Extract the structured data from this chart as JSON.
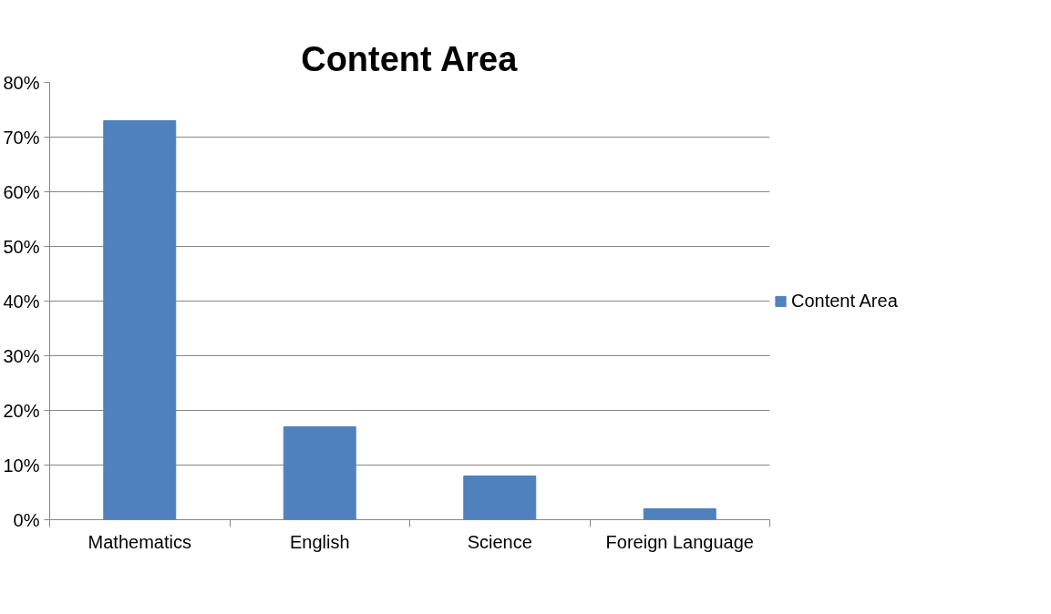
{
  "chart_data": {
    "type": "bar",
    "title": "Content Area",
    "categories": [
      "Mathematics",
      "English",
      "Science",
      "Foreign Language"
    ],
    "series": [
      {
        "name": "Content Area",
        "color": "#4f81bd",
        "values": [
          73,
          17,
          8,
          2
        ]
      }
    ],
    "ylim": [
      0,
      80
    ],
    "yticks": [
      {
        "value": 0,
        "label": "0%"
      },
      {
        "value": 10,
        "label": "10%"
      },
      {
        "value": 20,
        "label": "20%"
      },
      {
        "value": 30,
        "label": "30%"
      },
      {
        "value": 40,
        "label": "40%"
      },
      {
        "value": 50,
        "label": "50%"
      },
      {
        "value": 60,
        "label": "60%"
      },
      {
        "value": 70,
        "label": "70%"
      },
      {
        "value": 80,
        "label": "80%"
      }
    ],
    "grid": "y",
    "legend": "right"
  }
}
